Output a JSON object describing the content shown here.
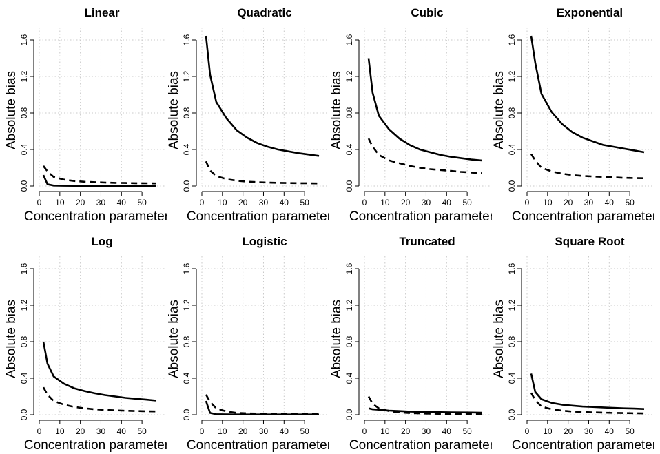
{
  "chart_data": [
    {
      "type": "line",
      "title": "Linear",
      "xlabel": "Concentration parameter",
      "ylabel": "Absolute bias",
      "xlim": [
        0,
        57
      ],
      "ylim": [
        0,
        1.6
      ],
      "xticks": [
        "0",
        "10",
        "20",
        "30",
        "40",
        "50"
      ],
      "yticks": [
        "0.0",
        "0.4",
        "0.8",
        "1.2",
        "1.6"
      ],
      "grid": true,
      "series": [
        {
          "style": "solid",
          "x": [
            2,
            4,
            7,
            12,
            17,
            22,
            27,
            32,
            37,
            42,
            47,
            52,
            57
          ],
          "values": [
            0.12,
            0.02,
            0.005,
            0.003,
            0.002,
            0.002,
            0.002,
            0.002,
            0.002,
            0.002,
            0.002,
            0.002,
            0.002
          ]
        },
        {
          "style": "dashed",
          "x": [
            2,
            4,
            7,
            12,
            17,
            22,
            27,
            32,
            37,
            42,
            47,
            52,
            57
          ],
          "values": [
            0.22,
            0.16,
            0.1,
            0.07,
            0.055,
            0.047,
            0.042,
            0.038,
            0.035,
            0.033,
            0.031,
            0.03,
            0.029
          ]
        }
      ]
    },
    {
      "type": "line",
      "title": "Quadratic",
      "xlabel": "Concentration parameter",
      "ylabel": "Absolute bias",
      "xlim": [
        0,
        57
      ],
      "ylim": [
        0,
        1.6
      ],
      "xticks": [
        "0",
        "10",
        "20",
        "30",
        "40",
        "50"
      ],
      "yticks": [
        "0.0",
        "0.4",
        "0.8",
        "1.2",
        "1.6"
      ],
      "grid": true,
      "series": [
        {
          "style": "solid",
          "x": [
            2,
            4,
            7,
            12,
            17,
            22,
            27,
            32,
            37,
            42,
            47,
            52,
            57
          ],
          "values": [
            1.65,
            1.22,
            0.92,
            0.74,
            0.61,
            0.53,
            0.47,
            0.43,
            0.4,
            0.38,
            0.36,
            0.345,
            0.33
          ]
        },
        {
          "style": "dashed",
          "x": [
            2,
            4,
            7,
            12,
            17,
            22,
            27,
            32,
            37,
            42,
            47,
            52,
            57
          ],
          "values": [
            0.27,
            0.17,
            0.11,
            0.075,
            0.058,
            0.048,
            0.042,
            0.038,
            0.035,
            0.033,
            0.031,
            0.03,
            0.029
          ]
        }
      ]
    },
    {
      "type": "line",
      "title": "Cubic",
      "xlabel": "Concentration parameter",
      "ylabel": "Absolute bias",
      "xlim": [
        0,
        57
      ],
      "ylim": [
        0,
        1.6
      ],
      "xticks": [
        "0",
        "10",
        "20",
        "30",
        "40",
        "50"
      ],
      "yticks": [
        "0.0",
        "0.4",
        "0.8",
        "1.2",
        "1.6"
      ],
      "grid": true,
      "series": [
        {
          "style": "solid",
          "x": [
            2,
            4,
            7,
            12,
            17,
            22,
            27,
            32,
            37,
            42,
            47,
            52,
            57
          ],
          "values": [
            1.4,
            1.02,
            0.77,
            0.62,
            0.52,
            0.45,
            0.4,
            0.37,
            0.34,
            0.32,
            0.305,
            0.29,
            0.28
          ]
        },
        {
          "style": "dashed",
          "x": [
            2,
            4,
            7,
            12,
            17,
            22,
            27,
            32,
            37,
            42,
            47,
            52,
            57
          ],
          "values": [
            0.52,
            0.43,
            0.34,
            0.28,
            0.25,
            0.22,
            0.2,
            0.185,
            0.175,
            0.165,
            0.155,
            0.148,
            0.14
          ]
        }
      ]
    },
    {
      "type": "line",
      "title": "Exponential",
      "xlabel": "Concentration parameter",
      "ylabel": "Absolute bias",
      "xlim": [
        0,
        57
      ],
      "ylim": [
        0,
        1.6
      ],
      "xticks": [
        "0",
        "10",
        "20",
        "30",
        "40",
        "50"
      ],
      "yticks": [
        "0.0",
        "0.4",
        "0.8",
        "1.2",
        "1.6"
      ],
      "grid": true,
      "series": [
        {
          "style": "solid",
          "x": [
            2,
            4,
            7,
            12,
            17,
            22,
            27,
            32,
            37,
            42,
            47,
            52,
            57
          ],
          "values": [
            1.8,
            1.35,
            1.01,
            0.81,
            0.68,
            0.59,
            0.53,
            0.49,
            0.45,
            0.43,
            0.41,
            0.39,
            0.37
          ]
        },
        {
          "style": "dashed",
          "x": [
            2,
            4,
            7,
            12,
            17,
            22,
            27,
            32,
            37,
            42,
            47,
            52,
            57
          ],
          "values": [
            0.35,
            0.28,
            0.2,
            0.16,
            0.135,
            0.12,
            0.11,
            0.105,
            0.1,
            0.095,
            0.09,
            0.087,
            0.085
          ]
        }
      ]
    },
    {
      "type": "line",
      "title": "Log",
      "xlabel": "Concentration parameter",
      "ylabel": "Absolute bias",
      "xlim": [
        0,
        57
      ],
      "ylim": [
        0,
        1.6
      ],
      "xticks": [
        "0",
        "10",
        "20",
        "30",
        "40",
        "50"
      ],
      "yticks": [
        "0.0",
        "0.4",
        "0.8",
        "1.2",
        "1.6"
      ],
      "grid": true,
      "series": [
        {
          "style": "solid",
          "x": [
            2,
            4,
            7,
            12,
            17,
            22,
            27,
            32,
            37,
            42,
            47,
            52,
            57
          ],
          "values": [
            0.8,
            0.56,
            0.42,
            0.34,
            0.29,
            0.26,
            0.235,
            0.215,
            0.2,
            0.185,
            0.175,
            0.165,
            0.155
          ]
        },
        {
          "style": "dashed",
          "x": [
            2,
            4,
            7,
            12,
            17,
            22,
            27,
            32,
            37,
            42,
            47,
            52,
            57
          ],
          "values": [
            0.3,
            0.22,
            0.15,
            0.11,
            0.085,
            0.07,
            0.06,
            0.053,
            0.048,
            0.044,
            0.041,
            0.038,
            0.036
          ]
        }
      ]
    },
    {
      "type": "line",
      "title": "Logistic",
      "xlabel": "Concentration parameter",
      "ylabel": "Absolute bias",
      "xlim": [
        0,
        57
      ],
      "ylim": [
        0,
        1.6
      ],
      "xticks": [
        "0",
        "10",
        "20",
        "30",
        "40",
        "50"
      ],
      "yticks": [
        "0.0",
        "0.4",
        "0.8",
        "1.2",
        "1.6"
      ],
      "grid": true,
      "series": [
        {
          "style": "solid",
          "x": [
            2,
            4,
            7,
            12,
            17,
            22,
            27,
            32,
            37,
            42,
            47,
            52,
            57
          ],
          "values": [
            0.15,
            0.02,
            0.005,
            0.003,
            0.002,
            0.002,
            0.002,
            0.002,
            0.002,
            0.002,
            0.002,
            0.002,
            0.002
          ]
        },
        {
          "style": "dashed",
          "x": [
            2,
            4,
            7,
            12,
            17,
            22,
            27,
            32,
            37,
            42,
            47,
            52,
            57
          ],
          "values": [
            0.22,
            0.14,
            0.07,
            0.035,
            0.02,
            0.015,
            0.012,
            0.01,
            0.01,
            0.009,
            0.009,
            0.008,
            0.008
          ]
        }
      ]
    },
    {
      "type": "line",
      "title": "Truncated",
      "xlabel": "Concentration parameter",
      "ylabel": "Absolute bias",
      "xlim": [
        0,
        57
      ],
      "ylim": [
        0,
        1.6
      ],
      "xticks": [
        "0",
        "10",
        "20",
        "30",
        "40",
        "50"
      ],
      "yticks": [
        "0.0",
        "0.4",
        "0.8",
        "1.2",
        "1.6"
      ],
      "grid": true,
      "series": [
        {
          "style": "solid",
          "x": [
            2,
            4,
            7,
            12,
            17,
            22,
            27,
            32,
            37,
            42,
            47,
            52,
            57
          ],
          "values": [
            0.07,
            0.06,
            0.055,
            0.045,
            0.04,
            0.035,
            0.032,
            0.03,
            0.028,
            0.026,
            0.025,
            0.024,
            0.023
          ]
        },
        {
          "style": "dashed",
          "x": [
            2,
            4,
            7,
            12,
            17,
            22,
            27,
            32,
            37,
            42,
            47,
            52,
            57
          ],
          "values": [
            0.2,
            0.12,
            0.07,
            0.04,
            0.025,
            0.018,
            0.014,
            0.011,
            0.009,
            0.008,
            0.007,
            0.006,
            0.005
          ]
        }
      ]
    },
    {
      "type": "line",
      "title": "Square Root",
      "xlabel": "Concentration parameter",
      "ylabel": "Absolute bias",
      "xlim": [
        0,
        57
      ],
      "ylim": [
        0,
        1.6
      ],
      "xticks": [
        "0",
        "10",
        "20",
        "30",
        "40",
        "50"
      ],
      "yticks": [
        "0.0",
        "0.4",
        "0.8",
        "1.2",
        "1.6"
      ],
      "grid": true,
      "series": [
        {
          "style": "solid",
          "x": [
            2,
            4,
            7,
            12,
            17,
            22,
            27,
            32,
            37,
            42,
            47,
            52,
            57
          ],
          "values": [
            0.45,
            0.25,
            0.17,
            0.13,
            0.11,
            0.1,
            0.09,
            0.085,
            0.08,
            0.075,
            0.07,
            0.067,
            0.063
          ]
        },
        {
          "style": "dashed",
          "x": [
            2,
            4,
            7,
            12,
            17,
            22,
            27,
            32,
            37,
            42,
            47,
            52,
            57
          ],
          "values": [
            0.24,
            0.16,
            0.09,
            0.06,
            0.045,
            0.035,
            0.03,
            0.026,
            0.023,
            0.02,
            0.018,
            0.016,
            0.014
          ]
        }
      ]
    }
  ]
}
